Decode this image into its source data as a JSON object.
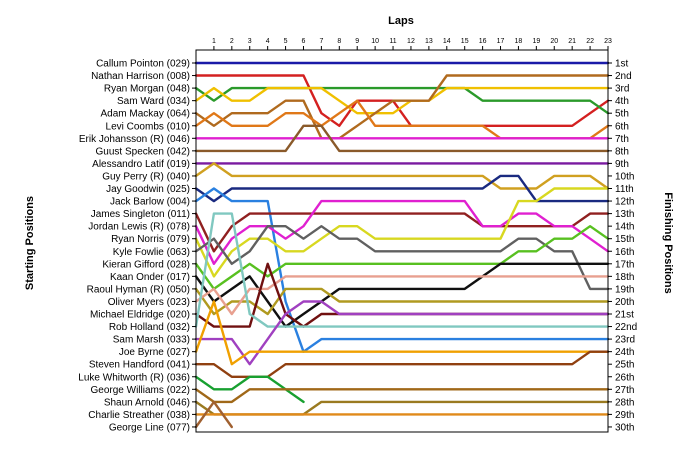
{
  "chart_data": {
    "type": "line",
    "xlabel": "Laps",
    "ylabel_left": "Starting Positions",
    "ylabel_right": "Finishing Positions",
    "x_ticks": [
      1,
      2,
      3,
      4,
      5,
      6,
      7,
      8,
      9,
      10,
      11,
      12,
      13,
      14,
      15,
      16,
      17,
      18,
      19,
      20,
      21,
      22,
      23
    ],
    "y_ticks_left": [
      "Callum Pointon (029)",
      "Nathan Harrison (008)",
      "Ryan Morgan (048)",
      "Sam Ward (034)",
      "Adam Mackay (064)",
      "Levi Coombs (010)",
      "Erik Johansson (R) (046)",
      "Guust Specken (042)",
      "Alessandro Latif (019)",
      "Guy Perry (R) (040)",
      "Jay Goodwin (025)",
      "Jack Barlow (004)",
      "James Singleton (011)",
      "Jordan Lewis (R) (078)",
      "Ryan Norris (079)",
      "Kyle Fowlie (063)",
      "Kieran Gifford (028)",
      "Kaan Onder (017)",
      "Raoul Hyman  (R) (050)",
      "Oliver Myers (023)",
      "Michael Eldridge (020)",
      "Rob Holland (032)",
      "Sam Marsh (033)",
      "Joe Byrne (027)",
      "Steven Handford (041)",
      "Luke Whitworth (R) (036)",
      "George Williams (022)",
      "Shaun Arnold (046)",
      "Charlie Streather (038)",
      "George Line (077)"
    ],
    "y_ticks_right": [
      "1st",
      "2nd",
      "3rd",
      "4th",
      "5th",
      "6th",
      "7th",
      "8th",
      "9th",
      "10th",
      "11th",
      "12th",
      "13th",
      "14th",
      "15th",
      "16th",
      "17th",
      "18th",
      "19th",
      "20th",
      "21st",
      "22nd",
      "23rd",
      "24th",
      "25th",
      "26th",
      "27th",
      "28th",
      "29th",
      "30th"
    ],
    "series": [
      {
        "color": "#1a1aa8",
        "positions": [
          1,
          1,
          1,
          1,
          1,
          1,
          1,
          1,
          1,
          1,
          1,
          1,
          1,
          1,
          1,
          1,
          1,
          1,
          1,
          1,
          1,
          1,
          1,
          1
        ]
      },
      {
        "color": "#d42020",
        "positions": [
          2,
          2,
          2,
          2,
          2,
          2,
          2,
          5,
          6,
          4,
          4,
          4,
          6,
          6,
          6,
          6,
          6,
          6,
          6,
          6,
          6,
          6,
          5,
          4
        ]
      },
      {
        "color": "#2a9a2a",
        "positions": [
          3,
          4,
          3,
          3,
          3,
          3,
          3,
          3,
          3,
          3,
          3,
          3,
          3,
          3,
          3,
          3,
          4,
          4,
          4,
          4,
          4,
          4,
          4,
          5
        ]
      },
      {
        "color": "#f0c000",
        "positions": [
          4,
          3,
          4,
          4,
          3,
          3,
          3,
          3,
          4,
          5,
          5,
          5,
          4,
          4,
          3,
          3,
          3,
          3,
          3,
          3,
          3,
          3,
          3,
          3
        ]
      },
      {
        "color": "#b06a1e",
        "positions": [
          5,
          6,
          5,
          5,
          5,
          4,
          4,
          7,
          7,
          6,
          5,
          4,
          4,
          4,
          2,
          2,
          2,
          2,
          2,
          2,
          2,
          2,
          2,
          2
        ]
      },
      {
        "color": "#e07818",
        "positions": [
          6,
          5,
          6,
          6,
          6,
          5,
          5,
          6,
          5,
          4,
          6,
          6,
          6,
          6,
          6,
          6,
          6,
          7,
          7,
          7,
          7,
          7,
          7,
          6
        ]
      },
      {
        "color": "#e020d0",
        "positions": [
          7,
          7,
          7,
          7,
          7,
          7,
          7,
          7,
          7,
          7,
          7,
          7,
          7,
          7,
          7,
          7,
          7,
          7,
          7,
          7,
          7,
          7,
          7,
          7
        ]
      },
      {
        "color": "#8a5a2a",
        "positions": [
          8,
          8,
          8,
          8,
          8,
          8,
          6,
          6,
          8,
          8,
          8,
          8,
          8,
          8,
          8,
          8,
          8,
          8,
          8,
          8,
          8,
          8,
          8,
          8
        ]
      },
      {
        "color": "#7a1aa0",
        "positions": [
          9,
          9,
          9,
          9,
          9,
          9,
          9,
          9,
          9,
          9,
          9,
          9,
          9,
          9,
          9,
          9,
          9,
          9,
          9,
          9,
          9,
          9,
          9,
          9
        ]
      },
      {
        "color": "#d0a020",
        "positions": [
          10,
          9,
          10,
          10,
          10,
          10,
          10,
          10,
          10,
          10,
          10,
          10,
          10,
          10,
          10,
          10,
          10,
          11,
          11,
          11,
          10,
          10,
          10,
          11
        ]
      },
      {
        "color": "#1a2a80",
        "positions": [
          11,
          12,
          11,
          11,
          11,
          11,
          11,
          11,
          11,
          11,
          11,
          11,
          11,
          11,
          11,
          11,
          11,
          10,
          10,
          12,
          12,
          12,
          12,
          12
        ]
      },
      {
        "color": "#2a80e0",
        "positions": [
          12,
          11,
          12,
          12,
          12,
          20,
          24,
          23,
          23,
          23,
          23,
          23,
          23,
          23,
          23,
          23,
          23,
          23,
          23,
          23,
          23,
          23,
          23,
          23
        ]
      },
      {
        "color": "#902020",
        "positions": [
          13,
          16,
          14,
          13,
          13,
          13,
          13,
          13,
          13,
          13,
          13,
          13,
          13,
          13,
          13,
          13,
          14,
          14,
          14,
          14,
          14,
          14,
          13,
          13
        ]
      },
      {
        "color": "#e020d0",
        "positions": [
          14,
          17,
          15,
          14,
          14,
          15,
          14,
          12,
          12,
          12,
          12,
          12,
          12,
          12,
          12,
          12,
          14,
          14,
          13,
          13,
          14,
          14,
          15,
          16
        ]
      },
      {
        "color": "#d8d820",
        "positions": [
          15,
          18,
          16,
          15,
          15,
          16,
          16,
          15,
          14,
          14,
          15,
          15,
          15,
          15,
          15,
          15,
          15,
          15,
          12,
          12,
          11,
          11,
          11,
          11
        ]
      },
      {
        "color": "#606060",
        "positions": [
          16,
          15,
          17,
          16,
          14,
          14,
          15,
          14,
          15,
          15,
          16,
          16,
          16,
          16,
          16,
          16,
          16,
          16,
          15,
          15,
          16,
          16,
          19,
          19
        ]
      },
      {
        "color": "#58c020",
        "positions": [
          17,
          19,
          18,
          17,
          18,
          17,
          17,
          17,
          17,
          17,
          17,
          17,
          17,
          17,
          17,
          17,
          17,
          17,
          16,
          16,
          15,
          15,
          14,
          15
        ]
      },
      {
        "color": "#101010",
        "positions": [
          18,
          20,
          19,
          18,
          20,
          22,
          21,
          20,
          19,
          19,
          19,
          19,
          19,
          19,
          19,
          19,
          18,
          17,
          17,
          17,
          17,
          17,
          17,
          17
        ]
      },
      {
        "color": "#b09a20",
        "positions": [
          19,
          21,
          20,
          20,
          21,
          19,
          19,
          19,
          20,
          20,
          20,
          20,
          20,
          20,
          20,
          20,
          20,
          20,
          20,
          20,
          20,
          20,
          20,
          20
        ]
      },
      {
        "color": "#e8a090",
        "positions": [
          20,
          19,
          21,
          19,
          19,
          18,
          18,
          18,
          18,
          18,
          18,
          18,
          18,
          18,
          18,
          18,
          18,
          18,
          18,
          18,
          18,
          18,
          18,
          18
        ]
      },
      {
        "color": "#701010",
        "positions": [
          21,
          22,
          22,
          22,
          17,
          21,
          22,
          21,
          21,
          21,
          21,
          21,
          21,
          21,
          21,
          21,
          21,
          21,
          21,
          21,
          21,
          21,
          21,
          21
        ]
      },
      {
        "color": "#80c8c0",
        "positions": [
          22,
          13,
          13,
          21,
          22,
          22,
          22,
          22,
          22,
          22,
          22,
          22,
          22,
          22,
          22,
          22,
          22,
          22,
          22,
          22,
          22,
          22,
          22,
          22
        ]
      },
      {
        "color": "#a040c0",
        "positions": [
          23,
          23,
          23,
          25,
          23,
          21,
          20,
          20,
          21,
          21,
          21,
          21,
          21,
          21,
          21,
          21,
          21,
          21,
          21,
          21,
          21,
          21,
          21,
          21
        ]
      },
      {
        "color": "#f0a000",
        "positions": [
          24,
          20,
          25,
          24,
          24,
          24,
          24,
          24,
          24,
          24,
          24,
          24,
          24,
          24,
          24,
          24,
          24,
          24,
          24,
          24,
          24,
          24,
          24,
          24
        ]
      },
      {
        "color": "#904010",
        "positions": [
          25,
          25,
          26,
          26,
          26,
          25,
          25,
          25,
          25,
          25,
          25,
          25,
          25,
          25,
          25,
          25,
          25,
          25,
          25,
          25,
          25,
          25,
          24,
          24
        ]
      },
      {
        "color": "#18a030",
        "positions": [
          26,
          27,
          27,
          26,
          26,
          27,
          28,
          0,
          0,
          0,
          0,
          0,
          0,
          0,
          0,
          0,
          0,
          0,
          0,
          0,
          0,
          0,
          0,
          0
        ]
      },
      {
        "color": "#a06818",
        "positions": [
          27,
          28,
          28,
          27,
          27,
          27,
          27,
          27,
          27,
          27,
          27,
          27,
          27,
          27,
          27,
          27,
          27,
          27,
          27,
          27,
          27,
          27,
          27,
          27
        ]
      },
      {
        "color": "#9a7a20",
        "positions": [
          28,
          29,
          29,
          29,
          29,
          29,
          29,
          28,
          28,
          28,
          28,
          28,
          28,
          28,
          28,
          28,
          28,
          28,
          28,
          28,
          28,
          28,
          28,
          28
        ]
      },
      {
        "color": "#e08a1a",
        "positions": [
          29,
          29,
          29,
          29,
          29,
          29,
          29,
          29,
          29,
          29,
          29,
          29,
          29,
          29,
          29,
          29,
          29,
          29,
          29,
          29,
          29,
          29,
          29,
          29
        ]
      },
      {
        "color": "#a06030",
        "positions": [
          30,
          28,
          30,
          0,
          0,
          0,
          0,
          0,
          0,
          0,
          0,
          0,
          0,
          0,
          0,
          0,
          0,
          0,
          0,
          0,
          0,
          0,
          0,
          0
        ]
      }
    ]
  }
}
